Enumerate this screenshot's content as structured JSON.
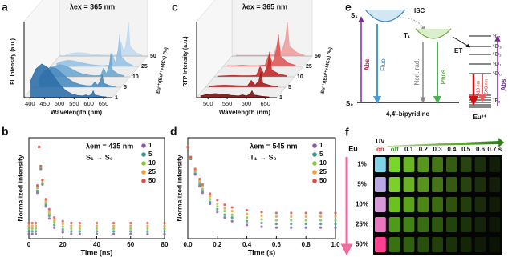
{
  "chart_data": [
    {
      "type": "waterfall",
      "label": "a",
      "title": "λex = 365 nm",
      "x_label": "Wavelength (nm)",
      "y_label": "FL Intensity (a.u.)",
      "z_label": "Eu³⁺/(Eu³⁺+MCs) (%)",
      "x": [
        400,
        420,
        440,
        460,
        480,
        500,
        520,
        540,
        560,
        580,
        590,
        600,
        610,
        615,
        620,
        640,
        660
      ],
      "xlim": [
        380,
        680
      ],
      "xticks": [
        400,
        450,
        500,
        550,
        600,
        650
      ],
      "series": [
        {
          "name": "1",
          "color": "#2f6fa8",
          "values": [
            0.45,
            0.85,
            1.0,
            0.9,
            0.65,
            0.4,
            0.22,
            0.12,
            0.07,
            0.05,
            0.08,
            0.05,
            0.1,
            0.2,
            0.08,
            0.04,
            0.02
          ]
        },
        {
          "name": "5",
          "color": "#4a8cc0",
          "values": [
            0.25,
            0.5,
            0.6,
            0.55,
            0.4,
            0.25,
            0.14,
            0.08,
            0.05,
            0.04,
            0.15,
            0.06,
            0.2,
            0.4,
            0.12,
            0.05,
            0.02
          ]
        },
        {
          "name": "10",
          "color": "#6ea8d2",
          "values": [
            0.15,
            0.3,
            0.36,
            0.33,
            0.24,
            0.15,
            0.08,
            0.05,
            0.03,
            0.04,
            0.25,
            0.08,
            0.35,
            0.7,
            0.2,
            0.08,
            0.03
          ]
        },
        {
          "name": "25",
          "color": "#98c2e2",
          "values": [
            0.08,
            0.15,
            0.18,
            0.16,
            0.12,
            0.08,
            0.05,
            0.03,
            0.02,
            0.04,
            0.35,
            0.1,
            0.5,
            0.95,
            0.3,
            0.1,
            0.03
          ]
        },
        {
          "name": "50",
          "color": "#c3daee",
          "values": [
            0.05,
            0.08,
            0.1,
            0.09,
            0.07,
            0.05,
            0.03,
            0.02,
            0.02,
            0.04,
            0.4,
            0.1,
            0.55,
            1.0,
            0.3,
            0.1,
            0.03
          ]
        }
      ]
    },
    {
      "type": "scatter",
      "label": "b",
      "annotations": [
        "λem = 435 nm",
        "S₁ → S₀"
      ],
      "x_label": "Time (ns)",
      "y_label": "Normalized intensity",
      "x": [
        0,
        2,
        4,
        5,
        6,
        7,
        8,
        10,
        12,
        15,
        20,
        25,
        30,
        40,
        50,
        60,
        70,
        80
      ],
      "xlim": [
        0,
        80
      ],
      "xticks": [
        0,
        20,
        40,
        60,
        80
      ],
      "ylim": [
        0,
        1.1
      ],
      "series": [
        {
          "name": "1",
          "color": "#8e5aa8",
          "values": [
            0.05,
            0.05,
            0.05,
            0.5,
            1.0,
            0.76,
            0.59,
            0.35,
            0.22,
            0.12,
            0.07,
            0.05,
            0.05,
            0.05,
            0.05,
            0.05,
            0.05,
            0.05
          ]
        },
        {
          "name": "5",
          "color": "#3a9a8a",
          "values": [
            0.08,
            0.08,
            0.08,
            0.52,
            1.0,
            0.77,
            0.6,
            0.37,
            0.25,
            0.15,
            0.1,
            0.08,
            0.08,
            0.08,
            0.08,
            0.08,
            0.08,
            0.08
          ]
        },
        {
          "name": "10",
          "color": "#8bc34a",
          "values": [
            0.11,
            0.11,
            0.11,
            0.55,
            1.0,
            0.78,
            0.61,
            0.39,
            0.27,
            0.18,
            0.13,
            0.11,
            0.11,
            0.11,
            0.11,
            0.11,
            0.11,
            0.11
          ]
        },
        {
          "name": "25",
          "color": "#f0a040",
          "values": [
            0.14,
            0.14,
            0.14,
            0.57,
            1.0,
            0.79,
            0.63,
            0.41,
            0.29,
            0.2,
            0.16,
            0.14,
            0.14,
            0.14,
            0.14,
            0.14,
            0.14,
            0.14
          ]
        },
        {
          "name": "50",
          "color": "#e05050",
          "values": [
            0.17,
            0.17,
            0.17,
            0.58,
            1.0,
            0.79,
            0.64,
            0.43,
            0.32,
            0.23,
            0.19,
            0.17,
            0.17,
            0.17,
            0.17,
            0.17,
            0.17,
            0.17
          ]
        }
      ]
    },
    {
      "type": "waterfall",
      "label": "c",
      "title": "λex = 365 nm",
      "x_label": "Wavelength (nm)",
      "y_label": "RTP Intensity (a.u.)",
      "z_label": "Eu³⁺/(Eu³⁺+MCs) (%)",
      "x": [
        480,
        500,
        520,
        540,
        560,
        580,
        590,
        600,
        610,
        615,
        620,
        640,
        660
      ],
      "xlim": [
        470,
        680
      ],
      "xticks": [
        500,
        550,
        600,
        650
      ],
      "series": [
        {
          "name": "1",
          "color": "#7a1010",
          "values": [
            0.05,
            0.1,
            0.12,
            0.1,
            0.07,
            0.05,
            0.08,
            0.05,
            0.1,
            0.2,
            0.08,
            0.04,
            0.02
          ]
        },
        {
          "name": "5",
          "color": "#a51c1c",
          "values": [
            0.03,
            0.05,
            0.06,
            0.05,
            0.04,
            0.04,
            0.2,
            0.06,
            0.2,
            0.45,
            0.12,
            0.05,
            0.02
          ]
        },
        {
          "name": "10",
          "color": "#c42a2a",
          "values": [
            0.02,
            0.03,
            0.04,
            0.03,
            0.03,
            0.04,
            0.3,
            0.08,
            0.35,
            0.75,
            0.2,
            0.08,
            0.03
          ]
        },
        {
          "name": "25",
          "color": "#dd5a5a",
          "values": [
            0.02,
            0.02,
            0.03,
            0.02,
            0.02,
            0.04,
            0.35,
            0.1,
            0.5,
            0.95,
            0.3,
            0.1,
            0.03
          ]
        },
        {
          "name": "50",
          "color": "#eea0a0",
          "values": [
            0.02,
            0.02,
            0.02,
            0.02,
            0.02,
            0.04,
            0.4,
            0.1,
            0.5,
            1.0,
            0.3,
            0.1,
            0.02
          ]
        }
      ]
    },
    {
      "type": "scatter",
      "label": "d",
      "annotations": [
        "λem = 545 nm",
        "T₁ → S₀"
      ],
      "x_label": "Time (s)",
      "y_label": "Normalized intensity",
      "x": [
        0,
        0.02,
        0.05,
        0.08,
        0.1,
        0.15,
        0.2,
        0.25,
        0.3,
        0.4,
        0.5,
        0.6,
        0.7,
        0.8,
        0.9,
        1.0
      ],
      "xlim": [
        0,
        1.0
      ],
      "xticks": [
        {
          "value": 0,
          "label": "0.0"
        },
        0.2,
        0.4,
        0.6,
        0.8,
        {
          "value": 1,
          "label": "1.0"
        }
      ],
      "ylim": [
        0,
        1.1
      ],
      "series": [
        {
          "name": "1",
          "color": "#8e5aa8",
          "values": [
            1,
            0.87,
            0.7,
            0.57,
            0.5,
            0.38,
            0.29,
            0.23,
            0.19,
            0.15,
            0.13,
            0.12,
            0.12,
            0.12,
            0.12,
            0.12
          ]
        },
        {
          "name": "5",
          "color": "#3a9a8a",
          "values": [
            1,
            0.87,
            0.71,
            0.59,
            0.52,
            0.4,
            0.32,
            0.26,
            0.23,
            0.19,
            0.17,
            0.16,
            0.16,
            0.16,
            0.16,
            0.16
          ]
        },
        {
          "name": "10",
          "color": "#8bc34a",
          "values": [
            1,
            0.88,
            0.73,
            0.61,
            0.54,
            0.43,
            0.35,
            0.3,
            0.26,
            0.23,
            0.21,
            0.2,
            0.2,
            0.2,
            0.2,
            0.2
          ]
        },
        {
          "name": "25",
          "color": "#f0a040",
          "values": [
            1,
            0.89,
            0.74,
            0.63,
            0.57,
            0.46,
            0.38,
            0.33,
            0.3,
            0.27,
            0.25,
            0.24,
            0.24,
            0.24,
            0.24,
            0.24
          ]
        },
        {
          "name": "50",
          "color": "#e05050",
          "values": [
            1,
            0.89,
            0.76,
            0.65,
            0.59,
            0.49,
            0.42,
            0.37,
            0.34,
            0.31,
            0.29,
            0.28,
            0.28,
            0.28,
            0.28,
            0.28
          ]
        }
      ]
    }
  ],
  "diagram": {
    "label": "e",
    "s1": "S₁",
    "t1": "T₁",
    "s0": "S₀",
    "isc": "ISC",
    "et": "ET",
    "abs": "Abs.",
    "fluo": "Fluo.",
    "nonrad": "Non. rad.",
    "phos": "Phos.",
    "molecule": "4,4'-bipyridine",
    "eu": "Eu³⁺",
    "levels": [
      "⁵L₆",
      "⁵D₃",
      "⁵D₂",
      "⁵D₁",
      "⁵D₀",
      "⁷F₆"
    ],
    "em1": "618 nm",
    "em2": "593 nm",
    "abs_eu": "Abs."
  },
  "photo_grid": {
    "label": "f",
    "uv": "UV",
    "eu": "Eu",
    "columns": [
      "on",
      "off",
      "0.1",
      "0.2",
      "0.3",
      "0.4",
      "0.5",
      "0.6",
      "0.7 s"
    ],
    "rows": [
      "1%",
      "5%",
      "10%",
      "25%",
      "50%"
    ],
    "on_colors": [
      "#7fd3e6",
      "#b9a7e6",
      "#d79ad9",
      "#e876c0",
      "#ff3f8f"
    ],
    "glow_colors": [
      "#7ad62a",
      "#7cd02a",
      "#6cc020",
      "#4f9a18",
      "#3a7012"
    ]
  }
}
